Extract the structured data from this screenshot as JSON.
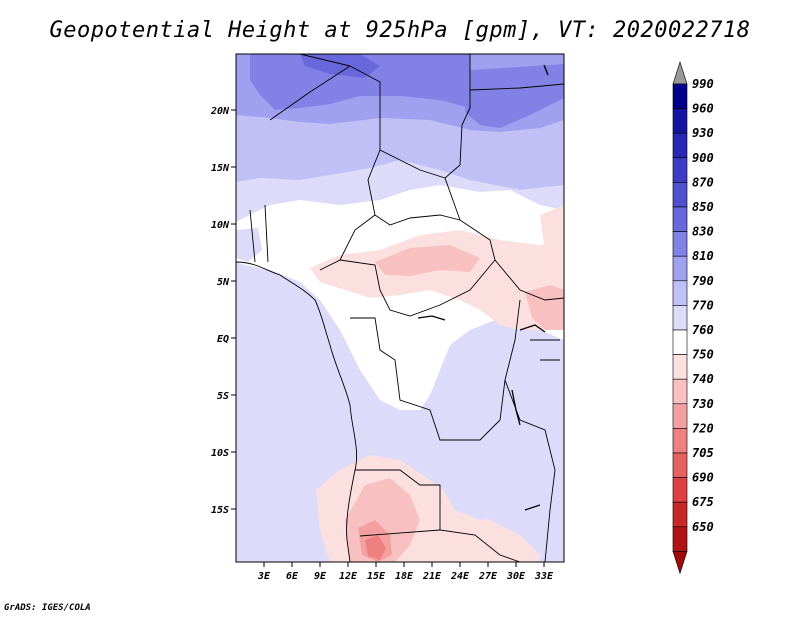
{
  "title": "Geopotential Height at 925hPa [gpm], VT: 2020022718",
  "credit": "GrADS: IGES/COLA",
  "lat_labels": [
    "20N",
    "15N",
    "10N",
    "5N",
    "EQ",
    "5S",
    "10S",
    "15S"
  ],
  "lon_labels": [
    "3E",
    "6E",
    "9E",
    "12E",
    "15E",
    "18E",
    "21E",
    "24E",
    "27E",
    "30E",
    "33E"
  ],
  "legend": {
    "levels": [
      "990",
      "960",
      "930",
      "900",
      "870",
      "850",
      "830",
      "810",
      "790",
      "770",
      "760",
      "750",
      "740",
      "730",
      "720",
      "705",
      "690",
      "675",
      "650"
    ],
    "colors": [
      "#00008a",
      "#1414a0",
      "#2828b4",
      "#3c3cc4",
      "#5050d0",
      "#6868dc",
      "#8282e6",
      "#a0a0f0",
      "#c0c0f6",
      "#dcdcfa",
      "#ffffff",
      "#fce0e0",
      "#f8c0c0",
      "#f4a0a0",
      "#ee8080",
      "#e66060",
      "#dc4040",
      "#c82828",
      "#b01414"
    ],
    "top_arrow_color": "#999999",
    "bottom_arrow_color": "#a00a0a"
  }
}
